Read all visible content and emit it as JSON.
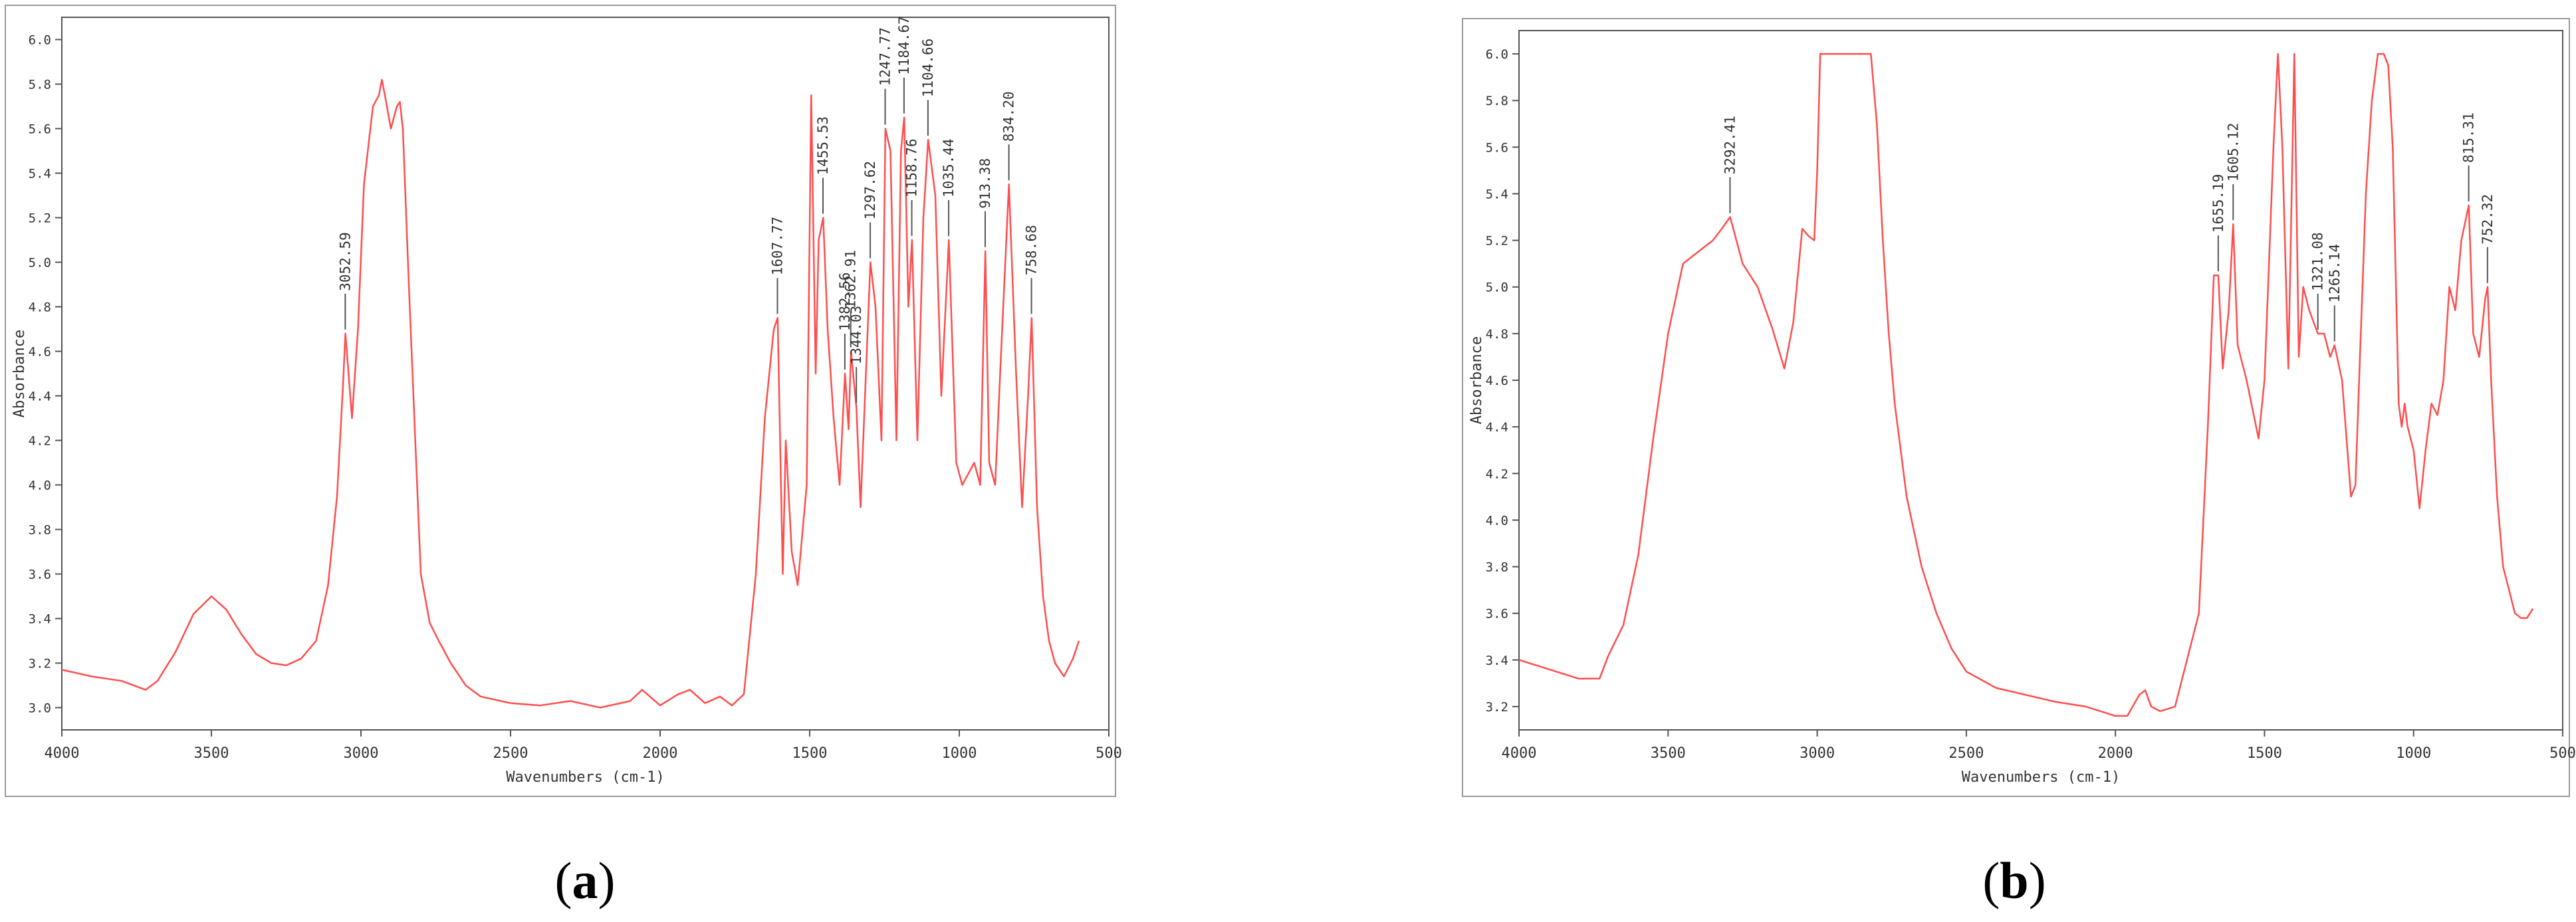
{
  "chart_data": [
    {
      "type": "line",
      "panel_label": "a",
      "xlabel": "Wavenumbers (cm-1)",
      "ylabel": "Absorbance",
      "xlim": [
        4000,
        500
      ],
      "ylim": [
        2.9,
        6.1
      ],
      "x_ticks": [
        4000,
        3500,
        3000,
        2500,
        2000,
        1500,
        1000,
        500
      ],
      "y_ticks": [
        3.0,
        3.2,
        3.4,
        3.6,
        3.8,
        4.0,
        4.2,
        4.4,
        4.6,
        4.8,
        5.0,
        5.2,
        5.4,
        5.6,
        5.8,
        6.0
      ],
      "line_color": "#ff4d4d",
      "series": [
        {
          "x": [
            4000,
            3900,
            3800,
            3720,
            3680,
            3620,
            3560,
            3500,
            3450,
            3400,
            3350,
            3300,
            3250,
            3200,
            3150,
            3110,
            3080,
            3060,
            3052,
            3030,
            3010,
            2990,
            2960,
            2940,
            2930,
            2920,
            2900,
            2880,
            2870,
            2860,
            2840,
            2800,
            2770,
            2740,
            2700,
            2650,
            2600,
            2500,
            2400,
            2300,
            2200,
            2100,
            2060,
            2000,
            1940,
            1900,
            1850,
            1800,
            1760,
            1720,
            1680,
            1650,
            1620,
            1607,
            1590,
            1580,
            1560,
            1540,
            1510,
            1495,
            1480,
            1470,
            1455,
            1440,
            1420,
            1400,
            1382,
            1370,
            1362,
            1344,
            1330,
            1297,
            1280,
            1260,
            1247,
            1230,
            1210,
            1195,
            1184,
            1170,
            1158,
            1140,
            1120,
            1104,
            1080,
            1060,
            1035,
            1010,
            990,
            970,
            950,
            930,
            913,
            900,
            880,
            860,
            834,
            810,
            790,
            770,
            758,
            740,
            720,
            700,
            680,
            650,
            620,
            600
          ],
          "y": [
            3.17,
            3.14,
            3.12,
            3.08,
            3.12,
            3.25,
            3.42,
            3.5,
            3.44,
            3.33,
            3.24,
            3.2,
            3.19,
            3.22,
            3.3,
            3.55,
            3.95,
            4.45,
            4.68,
            4.3,
            4.7,
            5.35,
            5.7,
            5.75,
            5.82,
            5.75,
            5.6,
            5.7,
            5.72,
            5.6,
            4.9,
            3.6,
            3.38,
            3.3,
            3.2,
            3.1,
            3.05,
            3.02,
            3.01,
            3.03,
            3.0,
            3.03,
            3.08,
            3.01,
            3.06,
            3.08,
            3.02,
            3.05,
            3.01,
            3.06,
            3.6,
            4.3,
            4.7,
            4.75,
            3.6,
            4.2,
            3.7,
            3.55,
            4.0,
            5.75,
            4.5,
            5.1,
            5.2,
            4.7,
            4.3,
            4.0,
            4.5,
            4.25,
            4.6,
            4.35,
            3.9,
            5.0,
            4.8,
            4.2,
            5.6,
            5.5,
            4.2,
            5.5,
            5.65,
            4.8,
            5.1,
            4.2,
            5.2,
            5.55,
            5.3,
            4.4,
            5.1,
            4.1,
            4.0,
            4.05,
            4.1,
            4.0,
            5.05,
            4.1,
            4.0,
            4.6,
            5.35,
            4.5,
            3.9,
            4.4,
            4.75,
            3.9,
            3.5,
            3.3,
            3.2,
            3.14,
            3.22,
            3.3
          ]
        }
      ],
      "annotations": [
        {
          "label": "3052.59",
          "x": 3052.59,
          "y": 4.68
        },
        {
          "label": "1607.77",
          "x": 1607.77,
          "y": 4.75
        },
        {
          "label": "1455.53",
          "x": 1455.53,
          "y": 5.2
        },
        {
          "label": "1382.56",
          "x": 1382.56,
          "y": 4.5
        },
        {
          "label": "1362.91",
          "x": 1362.91,
          "y": 4.6
        },
        {
          "label": "1344.03",
          "x": 1344.03,
          "y": 4.35
        },
        {
          "label": "1297.62",
          "x": 1297.62,
          "y": 5.0
        },
        {
          "label": "1247.77",
          "x": 1247.77,
          "y": 5.6
        },
        {
          "label": "1184.67",
          "x": 1184.67,
          "y": 5.65
        },
        {
          "label": "1158.76",
          "x": 1158.76,
          "y": 5.1
        },
        {
          "label": "1104.66",
          "x": 1104.66,
          "y": 5.55
        },
        {
          "label": "1035.44",
          "x": 1035.44,
          "y": 5.1
        },
        {
          "label": "913.38",
          "x": 913.38,
          "y": 5.05
        },
        {
          "label": "834.20",
          "x": 834.2,
          "y": 5.35
        },
        {
          "label": "758.68",
          "x": 758.68,
          "y": 4.75
        }
      ]
    },
    {
      "type": "line",
      "panel_label": "b",
      "xlabel": "Wavenumbers (cm-1)",
      "ylabel": "Absorbance",
      "xlim": [
        4000,
        500
      ],
      "ylim": [
        3.1,
        6.1
      ],
      "x_ticks": [
        4000,
        3500,
        3000,
        2500,
        2000,
        1500,
        1000,
        500
      ],
      "y_ticks": [
        3.2,
        3.4,
        3.6,
        3.8,
        4.0,
        4.2,
        4.4,
        4.6,
        4.8,
        5.0,
        5.2,
        5.4,
        5.6,
        5.8,
        6.0
      ],
      "line_color": "#ff4d4d",
      "series": [
        {
          "x": [
            4000,
            3900,
            3800,
            3730,
            3700,
            3650,
            3600,
            3550,
            3500,
            3450,
            3400,
            3350,
            3320,
            3292,
            3250,
            3200,
            3150,
            3110,
            3080,
            3050,
            3030,
            3010,
            3000,
            2990,
            2960,
            2900,
            2850,
            2820,
            2800,
            2780,
            2760,
            2740,
            2700,
            2650,
            2600,
            2550,
            2500,
            2400,
            2300,
            2200,
            2100,
            2000,
            1960,
            1920,
            1900,
            1880,
            1850,
            1800,
            1760,
            1720,
            1690,
            1670,
            1655,
            1640,
            1620,
            1605,
            1590,
            1560,
            1520,
            1500,
            1470,
            1455,
            1440,
            1420,
            1400,
            1385,
            1370,
            1350,
            1321,
            1300,
            1280,
            1265,
            1240,
            1210,
            1195,
            1180,
            1160,
            1140,
            1120,
            1100,
            1085,
            1070,
            1050,
            1040,
            1030,
            1020,
            1000,
            980,
            960,
            940,
            920,
            900,
            880,
            860,
            840,
            815,
            800,
            780,
            760,
            752,
            740,
            720,
            700,
            680,
            660,
            640,
            620,
            600
          ],
          "y": [
            3.4,
            3.36,
            3.32,
            3.32,
            3.42,
            3.55,
            3.85,
            4.35,
            4.8,
            5.1,
            5.15,
            5.2,
            5.25,
            5.3,
            5.1,
            5.0,
            4.82,
            4.65,
            4.85,
            5.25,
            5.22,
            5.2,
            5.5,
            6.0,
            6.0,
            6.0,
            6.0,
            6.0,
            5.7,
            5.2,
            4.8,
            4.5,
            4.1,
            3.8,
            3.6,
            3.45,
            3.35,
            3.28,
            3.25,
            3.22,
            3.2,
            3.16,
            3.16,
            3.25,
            3.27,
            3.2,
            3.18,
            3.2,
            3.4,
            3.6,
            4.4,
            5.05,
            5.05,
            4.65,
            4.9,
            5.27,
            4.75,
            4.6,
            4.35,
            4.6,
            5.6,
            6.0,
            5.6,
            4.65,
            6.0,
            4.7,
            5.0,
            4.9,
            4.8,
            4.8,
            4.7,
            4.75,
            4.6,
            4.1,
            4.15,
            4.7,
            5.4,
            5.8,
            6.0,
            6.0,
            5.95,
            5.6,
            4.5,
            4.4,
            4.5,
            4.4,
            4.3,
            4.05,
            4.3,
            4.5,
            4.45,
            4.6,
            5.0,
            4.9,
            5.2,
            5.35,
            4.8,
            4.7,
            4.95,
            5.0,
            4.6,
            4.1,
            3.8,
            3.7,
            3.6,
            3.58,
            3.58,
            3.62
          ]
        }
      ],
      "annotations": [
        {
          "label": "3292.41",
          "x": 3292.41,
          "y": 5.3
        },
        {
          "label": "1655.19",
          "x": 1655.19,
          "y": 5.05
        },
        {
          "label": "1605.12",
          "x": 1605.12,
          "y": 5.27
        },
        {
          "label": "1321.08",
          "x": 1321.08,
          "y": 4.8
        },
        {
          "label": "1265.14",
          "x": 1265.14,
          "y": 4.75
        },
        {
          "label": "815.31",
          "x": 815.31,
          "y": 5.35
        },
        {
          "label": "752.32",
          "x": 752.32,
          "y": 5.0
        }
      ]
    }
  ],
  "captions": {
    "a": "a",
    "b": "b"
  }
}
